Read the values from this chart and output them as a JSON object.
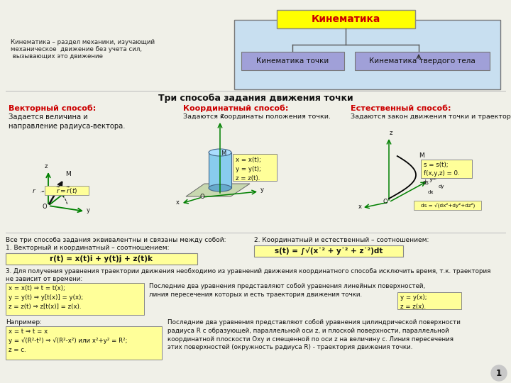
{
  "bg_color": "#f0f0e8",
  "slide_title": "Кинематика",
  "slide_title_bg": "#ffff00",
  "slide_title_color": "#cc0000",
  "box_outer_bg": "#c8dff0",
  "box1_text": "Кинематика точки",
  "box2_text": "Кинематика твердого тела",
  "box_inner_bg": "#a0a0d8",
  "left_text_line1": "Кинематика – раздел механики, изучающий",
  "left_text_line2": "механическое  движение без учета сил,",
  "left_text_line3": " вызывающих это движение",
  "section_title": "Три способа задания движения точки",
  "method1_title": "Векторный способ:",
  "method1_title_color": "#cc0000",
  "method1_desc": "Задается величина и\nнаправление радиуса-вектора.",
  "method2_title": "Координатный способ:",
  "method2_title_color": "#cc0000",
  "method2_desc": "Задаются координаты положения точки.",
  "method3_title": "Естественный способ:",
  "method3_title_color": "#cc0000",
  "method3_desc": "Задаются закон движения точки и траектория.",
  "bottom_text1": "Все три способа задания эквивалентны и связаны между собой:",
  "bottom_text2": "1. Векторный и координатный – соотношением:",
  "bottom_formula1": "r(t) = x(t)i + y(t)j + z(t)k",
  "bottom_text3": "2. Координатный и естественный – соотношением:",
  "bottom_formula2": "s(t) = ∫√(x˙² + y˙² + z˙²)dt",
  "bottom_text4": "3. Для получения уравнения траектории движения необходимо из уравнений движения координатного способа исключить время, т.к. траектория",
  "bottom_text4b": "не зависит от времени:",
  "traj_eqs": "x = x(t) ⇒ t = t(x);\ny = y(t) ⇒ y[t(x)] = y(x);\nz = z(t) ⇒ z[t(x)] = z(x).",
  "right_text_para": "Последние два уравнения представляют собой уравнения линейных поверхностей,\nлиния пересечения которых и есть траектория движения точки.",
  "right_eqs_box": "y = y(x);\nz = z(x).",
  "example_label": "Например:",
  "example_box_l1": "x = t ⇒ t = x",
  "example_box_l2": "y = √(R²-t²) ⇒ √(R²-x²) или x²+y² = R²;",
  "example_box_l3": "z = c.",
  "bottom_para": "Последние два уравнения представляют собой уравнения цилиндрической поверхности\nрадиуса R с образующей, параллельной оси z, и плоской поверхности, параллельной\nкоординатной плоскости Оху и смещенной по оси z на величину с. Линия пересечения\nэтих поверхностей (окружность радиуса R) - траектория движения точки.",
  "page_num": "1",
  "formula_bg": "#ffff99",
  "eq_box_bg": "#ffff99",
  "ds_formula": "ds = √(dx²+dy²+dz²)"
}
